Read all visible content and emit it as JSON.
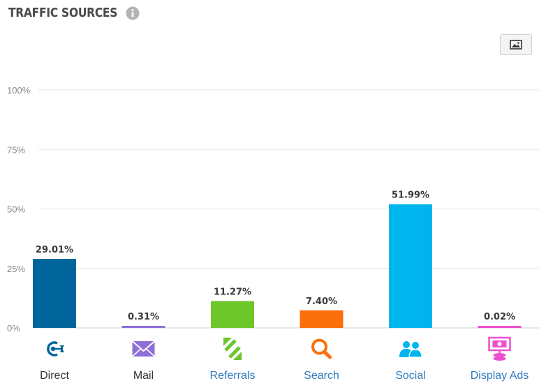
{
  "header": {
    "title": "TRAFFIC SOURCES",
    "info_icon": "info-circle-icon",
    "export_icon": "image-icon"
  },
  "chart_data": {
    "type": "bar",
    "title": "TRAFFIC SOURCES",
    "xlabel": "",
    "ylabel": "",
    "ylim": [
      0,
      100
    ],
    "yticks": [
      "0%",
      "25%",
      "50%",
      "75%",
      "100%"
    ],
    "grid": true,
    "categories": [
      "Direct",
      "Mail",
      "Referrals",
      "Search",
      "Social",
      "Display Ads"
    ],
    "values": [
      29.01,
      0.31,
      11.27,
      7.4,
      51.99,
      0.02
    ],
    "value_labels": [
      "29.01%",
      "0.31%",
      "11.27%",
      "7.40%",
      "51.99%",
      "0.02%"
    ],
    "colors": [
      "#00659a",
      "#8e6fd8",
      "#6dc62a",
      "#fb6f0c",
      "#00b4ee",
      "#ee4fd0"
    ],
    "label_colors": [
      "#333333",
      "#333333",
      "#2f7bbd",
      "#2f7bbd",
      "#2f7bbd",
      "#2f7bbd"
    ],
    "icons": [
      "direct-icon",
      "mail-icon",
      "referrals-icon",
      "search-icon",
      "social-icon",
      "display-ads-icon"
    ]
  }
}
